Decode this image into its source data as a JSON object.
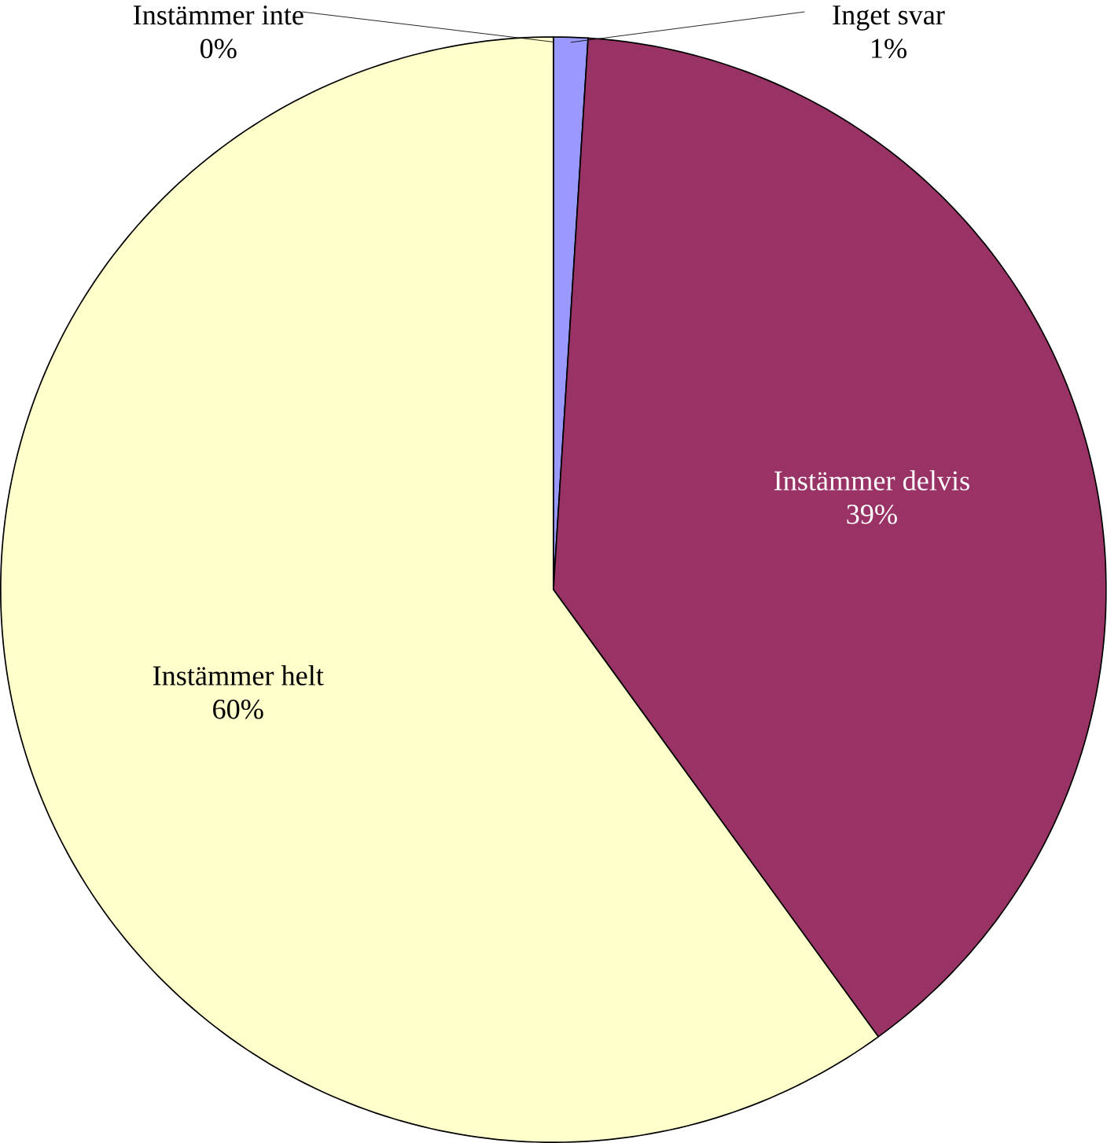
{
  "chart_data": {
    "type": "pie",
    "categories": [
      "Inget svar",
      "Instämmer delvis",
      "Instämmer helt",
      "Instämmer inte"
    ],
    "values": [
      1,
      39,
      60,
      0
    ],
    "colors": [
      "#9999ff",
      "#993366",
      "#ffffcc",
      "#ccffff"
    ],
    "value_labels": [
      "1%",
      "39%",
      "60%",
      "0%"
    ]
  }
}
